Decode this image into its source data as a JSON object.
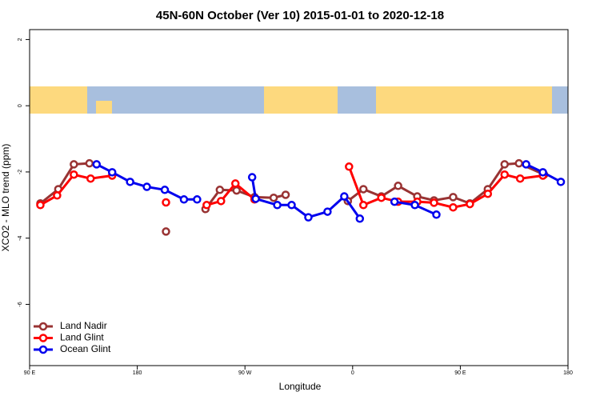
{
  "chart_data": {
    "type": "line",
    "title": "45N-60N October (Ver 10)   2015-01-01 to 2020-12-18",
    "x_label": "Longitude",
    "y_label": "XCO2 - MLO trend (ppm)",
    "xlim": [
      90,
      540
    ],
    "xticks": [
      {
        "value": 90,
        "label": "90 E"
      },
      {
        "value": 180,
        "label": "180"
      },
      {
        "value": 270,
        "label": "90 W"
      },
      {
        "value": 360,
        "label": "0"
      },
      {
        "value": 450,
        "label": "90 E"
      },
      {
        "value": 540,
        "label": "180"
      }
    ],
    "ylim": [
      -7.85,
      2.3
    ],
    "yticks": [
      2,
      0,
      -2,
      -4,
      -6
    ],
    "legend": "bottom-left",
    "series": [
      {
        "name": "Land Nadir",
        "color": "#993333",
        "x": [
          99,
          114,
          127,
          140,
          null,
          204,
          null,
          237,
          249,
          263,
          278,
          294,
          304,
          null,
          356,
          369,
          384,
          398,
          414,
          428,
          444,
          458,
          473,
          487,
          499,
          520
        ],
        "values": [
          -2.95,
          -2.52,
          -1.77,
          -1.74,
          null,
          -3.8,
          null,
          -3.12,
          -2.54,
          -2.56,
          -2.76,
          -2.78,
          -2.69,
          null,
          -2.88,
          -2.52,
          -2.74,
          -2.42,
          -2.74,
          -2.86,
          -2.76,
          -2.95,
          -2.52,
          -1.77,
          -1.74,
          -2.08
        ]
      },
      {
        "name": "Land Glint",
        "color": "#ff0000",
        "x": [
          99,
          113,
          127,
          141,
          159,
          null,
          204,
          null,
          238,
          250,
          262,
          278,
          null,
          357,
          369,
          384,
          398,
          414,
          428,
          444,
          458,
          473,
          487,
          500,
          519
        ],
        "values": [
          -3.0,
          -2.71,
          -2.08,
          -2.2,
          -2.11,
          null,
          -2.92,
          null,
          -3.0,
          -2.88,
          -2.35,
          -2.83,
          null,
          -1.84,
          -3.0,
          -2.78,
          -2.9,
          -2.9,
          -2.93,
          -3.07,
          -2.97,
          -2.66,
          -2.08,
          -2.2,
          -2.11
        ]
      },
      {
        "name": "Ocean Glint",
        "color": "#0000ee",
        "x": [
          146,
          159,
          174,
          188,
          203,
          219,
          230,
          null,
          276,
          279,
          297,
          309,
          323,
          339,
          353,
          366,
          null,
          395,
          412,
          430,
          null,
          505,
          519,
          534
        ],
        "values": [
          -1.77,
          -2.01,
          -2.3,
          -2.45,
          -2.54,
          -2.83,
          -2.83,
          null,
          -2.16,
          -2.81,
          -3.0,
          -3.0,
          -3.37,
          -3.2,
          -2.74,
          -3.41,
          null,
          -2.9,
          -3.0,
          -3.29,
          null,
          -1.77,
          -2.01,
          -2.3
        ]
      }
    ]
  }
}
